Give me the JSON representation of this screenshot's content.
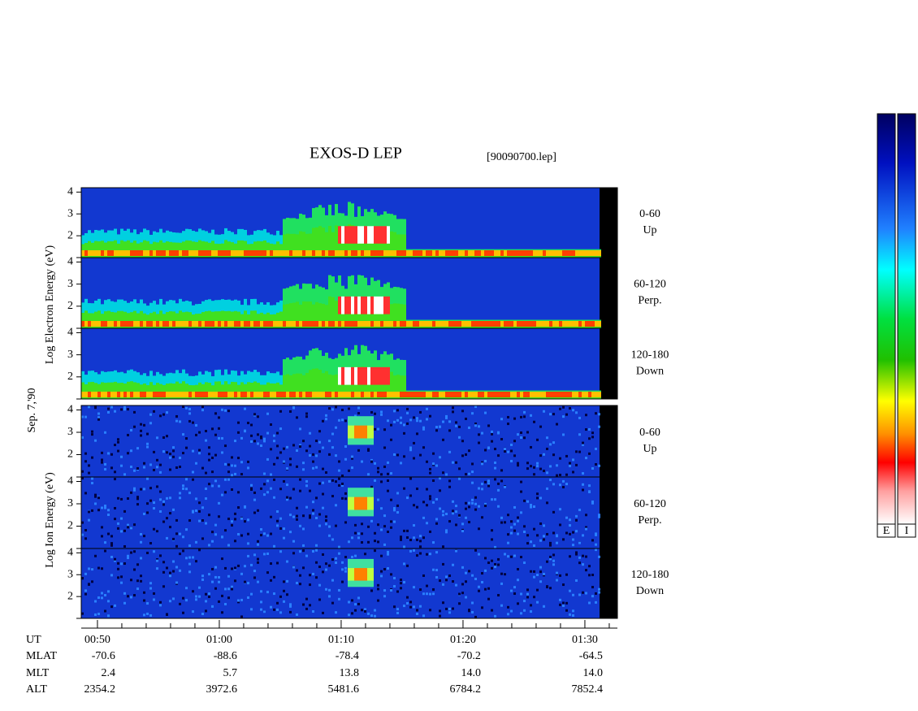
{
  "title": "EXOS-D LEP",
  "file": "[90090700.lep]",
  "date": "Sep. 7,'90",
  "electron": {
    "axis_label": "Log Electron Energy (eV)",
    "panels": [
      {
        "pitch": "0-60",
        "dir": "Up"
      },
      {
        "pitch": "60-120",
        "dir": "Perp."
      },
      {
        "pitch": "120-180",
        "dir": "Down"
      }
    ]
  },
  "ion": {
    "axis_label": "Log Ion Energy (eV)",
    "panels": [
      {
        "pitch": "0-60",
        "dir": "Up"
      },
      {
        "pitch": "60-120",
        "dir": "Perp."
      },
      {
        "pitch": "120-180",
        "dir": "Down"
      }
    ]
  },
  "energy_axis": {
    "ylim": [
      1,
      4.2
    ],
    "yticks": [
      2,
      3,
      4
    ]
  },
  "time_axis": {
    "xlim": [
      48.67,
      92.67
    ],
    "xticks": [
      {
        "value": 50,
        "label": "00:50"
      },
      {
        "value": 60,
        "label": "01:00"
      },
      {
        "value": 70,
        "label": "01:10"
      },
      {
        "value": 80,
        "label": "01:20"
      },
      {
        "value": 90,
        "label": "01:30"
      }
    ],
    "minor_xticks": [
      52,
      54,
      56,
      58,
      62,
      64,
      66,
      68,
      72,
      74,
      76,
      78,
      82,
      84,
      86,
      88,
      92
    ]
  },
  "ephemeris": [
    {
      "name": "UT"
    },
    {
      "name": "MLAT",
      "values": [
        "-70.6",
        "-88.6",
        "-78.4",
        "-70.2",
        "-64.5"
      ]
    },
    {
      "name": "MLT",
      "values": [
        "2.4",
        "5.7",
        "13.8",
        "14.0",
        "14.0"
      ]
    },
    {
      "name": "ALT",
      "values": [
        "2354.2",
        "3972.6",
        "5481.6",
        "6784.2",
        "7852.4"
      ]
    }
  ],
  "colorbars": [
    "E",
    "I"
  ]
}
